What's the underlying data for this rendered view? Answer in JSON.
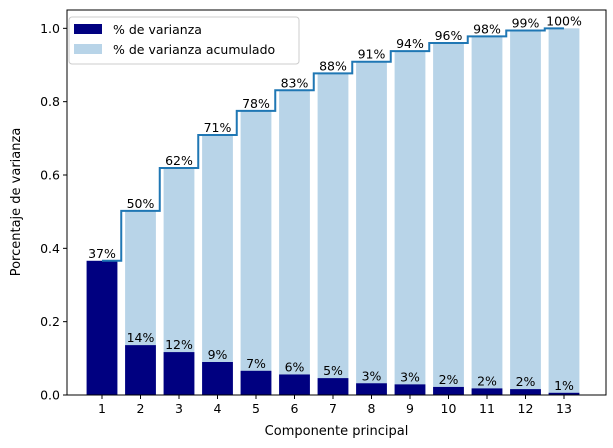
{
  "chart_data": {
    "type": "bar",
    "xlabel": "Componente principal",
    "ylabel": "Porcentaje de varianza",
    "ylim": [
      0,
      1.05
    ],
    "yticks": [
      "0.0",
      "0.2",
      "0.4",
      "0.6",
      "0.8",
      "1.0"
    ],
    "categories": [
      "1",
      "2",
      "3",
      "4",
      "5",
      "6",
      "7",
      "8",
      "9",
      "10",
      "11",
      "12",
      "13"
    ],
    "series": [
      {
        "name": "% de varianza",
        "color": "#000080",
        "values": [
          0.366,
          0.136,
          0.117,
          0.09,
          0.066,
          0.056,
          0.046,
          0.032,
          0.029,
          0.022,
          0.018,
          0.016,
          0.006
        ],
        "labels": [
          "37%",
          "14%",
          "12%",
          "9%",
          "7%",
          "6%",
          "5%",
          "3%",
          "3%",
          "2%",
          "2%",
          "2%",
          "1%"
        ]
      },
      {
        "name": "% de varianza acumulado",
        "color": "#b8d4e8",
        "values": [
          0.366,
          0.502,
          0.619,
          0.709,
          0.775,
          0.831,
          0.877,
          0.909,
          0.938,
          0.96,
          0.978,
          0.994,
          1.0
        ],
        "labels": [
          "37%",
          "50%",
          "62%",
          "71%",
          "78%",
          "83%",
          "88%",
          "91%",
          "94%",
          "96%",
          "98%",
          "99%",
          "100%"
        ]
      }
    ],
    "step_line_color": "#1f77b4",
    "legend": "top-left",
    "grid": false
  }
}
